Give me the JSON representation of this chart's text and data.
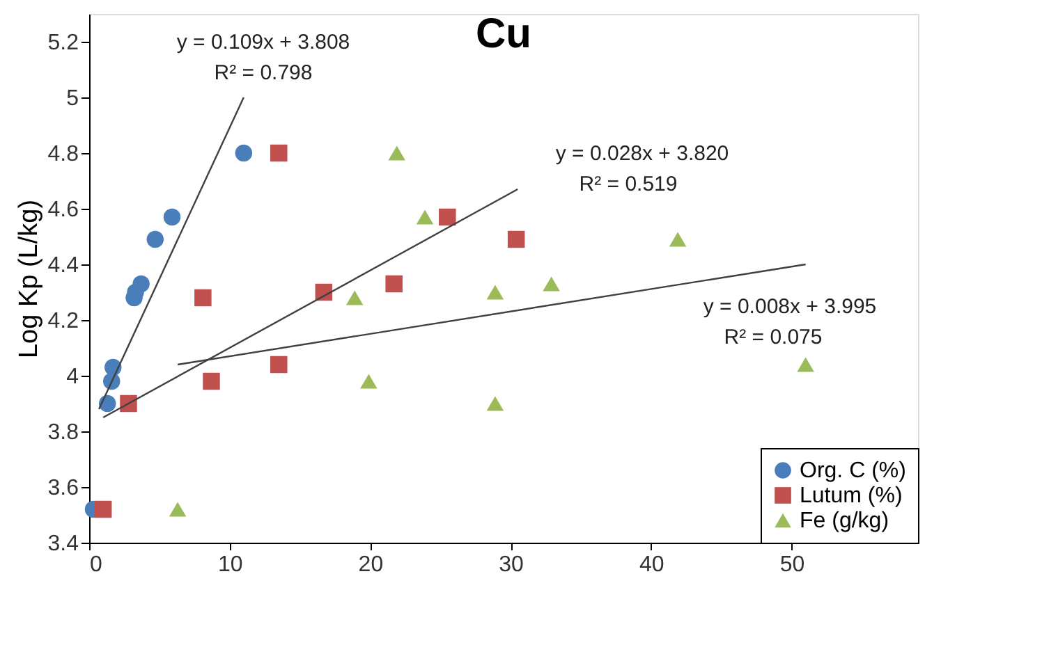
{
  "chart_data": {
    "type": "scatter",
    "title": "Cu",
    "ylabel": "Log Kp (L/kg)",
    "xlim": [
      0,
      59
    ],
    "xticks": [
      0,
      10,
      20,
      30,
      40,
      50
    ],
    "ylim": [
      3.4,
      5.3
    ],
    "yticks": [
      3.4,
      3.6,
      3.8,
      4,
      4.2,
      4.4,
      4.6,
      4.8,
      5,
      5.2
    ],
    "grid": false,
    "legend": "bottom right",
    "series": [
      {
        "name": "Org. C (%)",
        "color": "#4a7ebb",
        "marker": "circle",
        "x": [
          0.3,
          1.3,
          1.6,
          1.7,
          3.2,
          3.3,
          3.7,
          4.7,
          5.9,
          11.0
        ],
        "values": [
          3.52,
          3.9,
          3.98,
          4.03,
          4.28,
          4.3,
          4.33,
          4.49,
          4.57,
          4.8
        ]
      },
      {
        "name": "Lutum (%)",
        "color": "#c0504d",
        "marker": "square",
        "x": [
          1.0,
          2.8,
          8.1,
          8.7,
          13.5,
          13.5,
          16.7,
          21.7,
          25.5,
          30.4
        ],
        "values": [
          3.52,
          3.9,
          4.28,
          3.98,
          4.04,
          4.8,
          4.3,
          4.33,
          4.57,
          4.49
        ]
      },
      {
        "name": "Fe (g/kg)",
        "color": "#9bbb59",
        "marker": "triangle",
        "x": [
          6.3,
          18.9,
          19.9,
          21.9,
          23.9,
          28.9,
          28.9,
          32.9,
          41.9,
          51.0
        ],
        "values": [
          3.52,
          4.28,
          3.98,
          4.8,
          4.57,
          4.3,
          3.9,
          4.33,
          4.49,
          4.04
        ]
      },
      {
        "type": "line",
        "color": "#404040",
        "x": [
          0.7,
          11.0
        ],
        "values": [
          3.88,
          5.0
        ]
      },
      {
        "type": "line",
        "color": "#404040",
        "x": [
          1.0,
          30.5
        ],
        "values": [
          3.85,
          4.67
        ]
      },
      {
        "type": "line",
        "color": "#404040",
        "x": [
          6.3,
          51.0
        ],
        "values": [
          4.04,
          4.4
        ]
      }
    ],
    "annotations": [
      "y = 0.109x  + 3.808",
      "R² = 0.798",
      "y = 0.028x  + 3.820",
      "R² = 0.519",
      "y = 0.008x  + 3.995",
      "R² = 0.075"
    ]
  }
}
